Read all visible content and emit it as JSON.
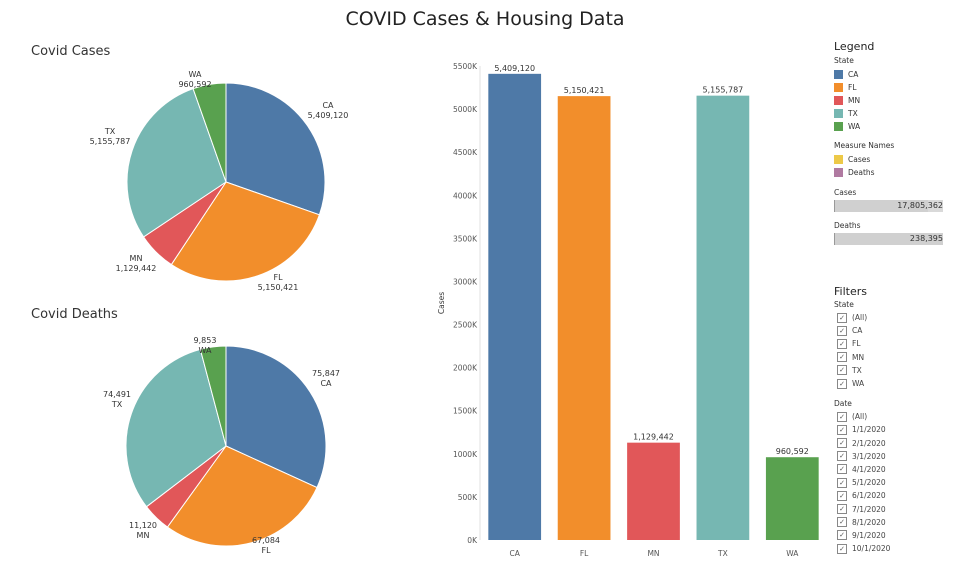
{
  "dashboard": {
    "title": "COVID Cases & Housing Data"
  },
  "pie_cases": {
    "title": "Covid Cases"
  },
  "pie_deaths": {
    "title": "Covid Deaths"
  },
  "legend": {
    "title": "Legend",
    "state_label": "State",
    "states": [
      {
        "label": "CA",
        "color": "#4e79a7"
      },
      {
        "label": "FL",
        "color": "#f28e2b"
      },
      {
        "label": "MN",
        "color": "#e15759"
      },
      {
        "label": "TX",
        "color": "#76b7b2"
      },
      {
        "label": "WA",
        "color": "#59a14f"
      }
    ],
    "measure_names_label": "Measure Names",
    "measures": [
      {
        "label": "Cases",
        "color": "#edc948"
      },
      {
        "label": "Deaths",
        "color": "#b07aa1"
      }
    ],
    "cases_label": "Cases",
    "cases_total": "17,805,362",
    "cases_fill": 0.86,
    "deaths_label": "Deaths",
    "deaths_total": "238,395",
    "deaths_fill": 1.0
  },
  "filters": {
    "title": "Filters",
    "state_label": "State",
    "state_options": [
      "(All)",
      "CA",
      "FL",
      "MN",
      "TX",
      "WA"
    ],
    "date_label": "Date",
    "date_options": [
      "(All)",
      "1/1/2020",
      "2/1/2020",
      "3/1/2020",
      "4/1/2020",
      "5/1/2020",
      "6/1/2020",
      "7/1/2020",
      "8/1/2020",
      "9/1/2020",
      "10/1/2020"
    ]
  },
  "chart_data": [
    {
      "type": "pie",
      "title": "Covid Cases",
      "categories": [
        "CA",
        "FL",
        "MN",
        "TX",
        "WA"
      ],
      "values": [
        5409120,
        5150421,
        1129442,
        5155787,
        960592
      ],
      "labels": [
        "5,409,120",
        "5,150,421",
        "1,129,442",
        "5,155,787",
        "960,592"
      ]
    },
    {
      "type": "pie",
      "title": "Covid Deaths",
      "categories": [
        "CA",
        "FL",
        "MN",
        "TX",
        "WA"
      ],
      "values": [
        75847,
        67084,
        11120,
        74491,
        9853
      ],
      "labels": [
        "75,847",
        "67,084",
        "11,120",
        "74,491",
        "9,853"
      ]
    },
    {
      "type": "bar",
      "categories": [
        "CA",
        "FL",
        "MN",
        "TX",
        "WA"
      ],
      "values": [
        5409120,
        5150421,
        1129442,
        5155787,
        960592
      ],
      "labels": [
        "5,409,120",
        "5,150,421",
        "1,129,442",
        "5,155,787",
        "960,592"
      ],
      "ylabel": "Cases",
      "ylim": [
        0,
        5500000
      ],
      "yticks": [
        0,
        500000,
        1000000,
        1500000,
        2000000,
        2500000,
        3000000,
        3500000,
        4000000,
        4500000,
        5000000,
        5500000
      ],
      "ytick_labels": [
        "0K",
        "500K",
        "1000K",
        "1500K",
        "2000K",
        "2500K",
        "3000K",
        "3500K",
        "4000K",
        "4500K",
        "5000K",
        "5500K"
      ],
      "grid": false
    }
  ]
}
